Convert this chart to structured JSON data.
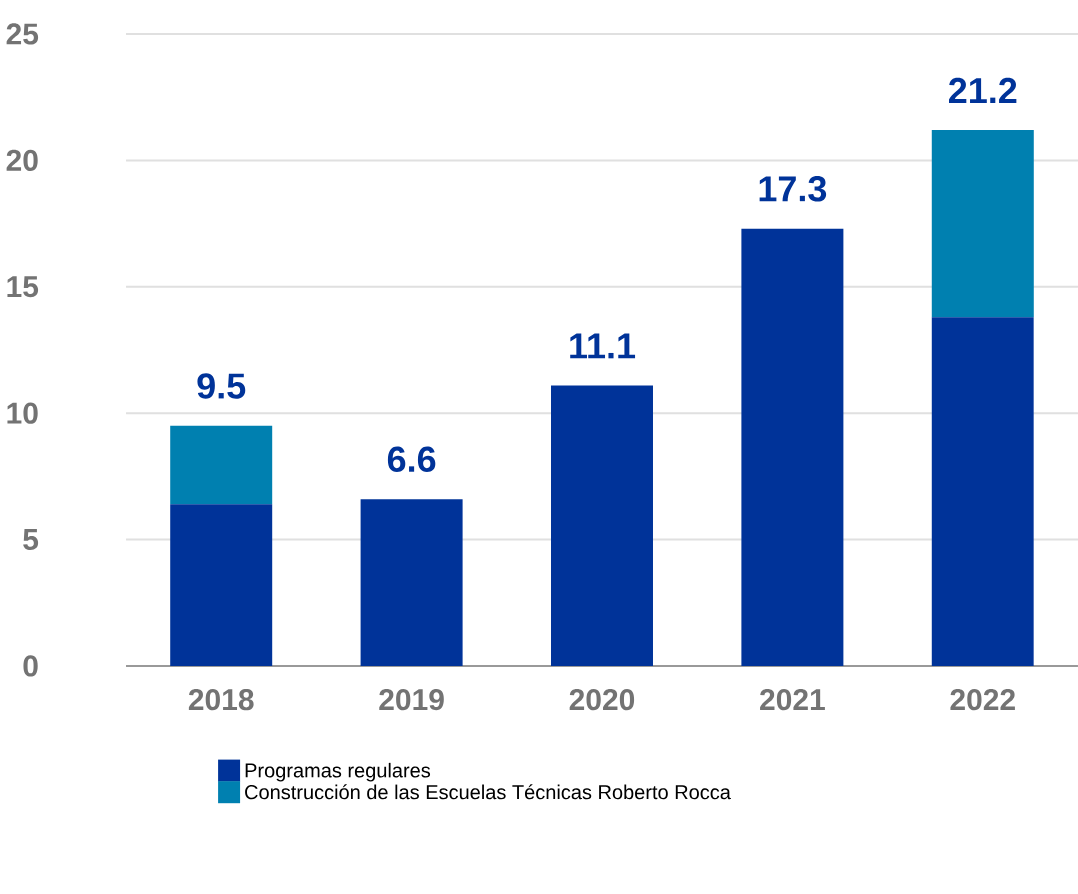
{
  "chart_data": {
    "type": "bar",
    "stacked": true,
    "categories": [
      "2018",
      "2019",
      "2020",
      "2021",
      "2022"
    ],
    "series": [
      {
        "name": "Programas regulares",
        "color": "#003399",
        "values": [
          6.4,
          6.6,
          11.1,
          17.3,
          13.8
        ]
      },
      {
        "name": "Construcción de las Escuelas Técnicas Roberto Rocca",
        "color": "#0080b0",
        "values": [
          3.1,
          null,
          null,
          null,
          7.4
        ]
      }
    ],
    "totals": [
      "9.5",
      "6.6",
      "11.1",
      "17.3",
      "21.2"
    ],
    "ylim": [
      0,
      25
    ],
    "yticks": [
      0,
      5,
      10,
      15,
      20,
      25
    ],
    "grid": "y",
    "legend": "bottom"
  }
}
